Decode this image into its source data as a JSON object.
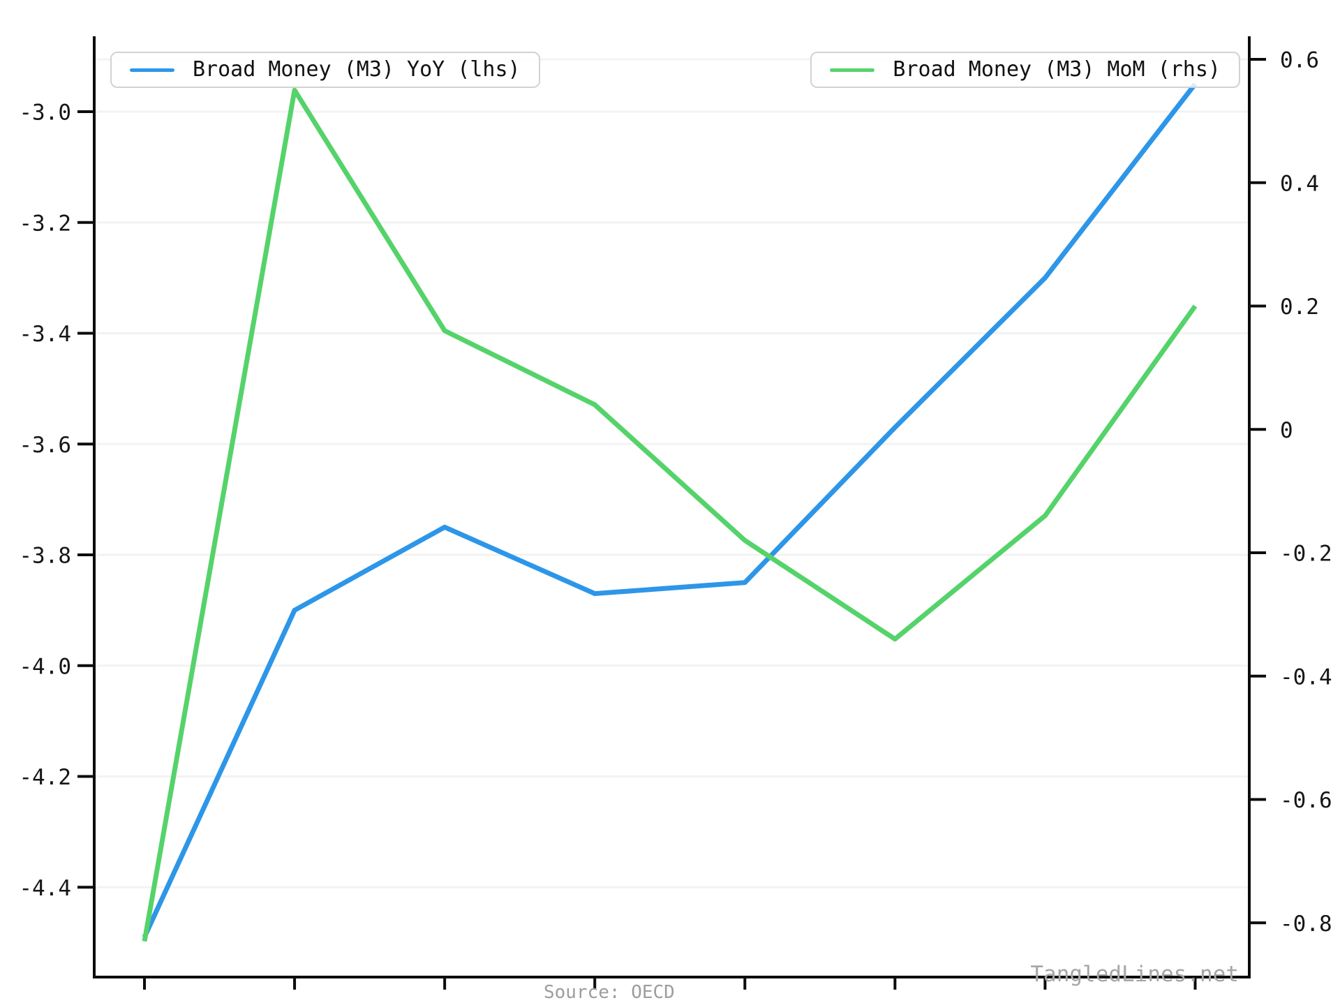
{
  "watermark": "TangledLines.net",
  "source_note": "Source: OECD",
  "legend": {
    "left_label": "Broad Money (M3) YoY (lhs)",
    "right_label": "Broad Money (M3) MoM (rhs)"
  },
  "chart_data": {
    "type": "line",
    "title": "",
    "x_points": 8,
    "x_tick_labels": [],
    "grid": "horizontal-faint",
    "legend_position": "top",
    "series": [
      {
        "name": "Broad Money (M3) YoY (lhs)",
        "axis": "left",
        "color": "#2d96e8",
        "values": [
          -4.49,
          -3.9,
          -3.75,
          -3.87,
          -3.85,
          -3.57,
          -3.3,
          -2.95
        ]
      },
      {
        "name": "Broad Money (M3) MoM (rhs)",
        "axis": "right",
        "color": "#55d36a",
        "values": [
          -0.83,
          0.55,
          0.16,
          0.04,
          -0.18,
          -0.34,
          -0.14,
          0.2
        ]
      }
    ],
    "left_axis": {
      "tick_values": [
        -3.0,
        -3.2,
        -3.4,
        -3.6,
        -3.8,
        -4.0,
        -4.2,
        -4.4
      ],
      "tick_labels": [
        "-3.0",
        "-3.2",
        "-3.4",
        "-3.6",
        "-3.8",
        "-4.0",
        "-4.2",
        "-4.4"
      ],
      "range": [
        -4.56,
        -2.87
      ]
    },
    "right_axis": {
      "tick_values": [
        0.6,
        0.4,
        0.2,
        0,
        -0.2,
        -0.4,
        -0.6,
        -0.8
      ],
      "tick_labels": [
        "0.6",
        "0.4",
        "0.2",
        "0",
        "-0.2",
        "-0.4",
        "-0.6",
        "-0.8"
      ],
      "range": [
        -0.89,
        0.63
      ]
    }
  }
}
